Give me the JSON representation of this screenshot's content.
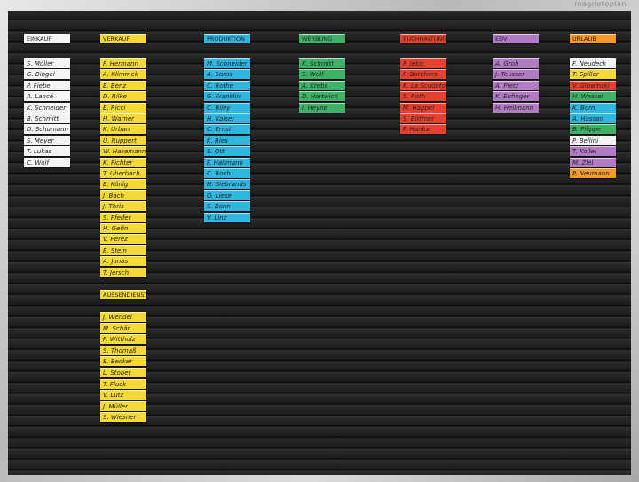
{
  "brand": "magnetoplan",
  "columns": [
    {
      "header": "EINKAUF",
      "color": "#f4f4f4",
      "cards": [
        "S. Möller",
        "G. Bingel",
        "P. Fiebe",
        "A. Lancé",
        "K. Schneider",
        "B. Schmitt",
        "D. Schumann",
        "S. Meyer",
        "T. Lukas",
        "C. Wolf"
      ]
    },
    {
      "header": "VERKAUF",
      "color": "#f5d936",
      "cards": [
        "F. Hermann",
        "A. Klimmek",
        "E. Benz",
        "D. Rilke",
        "E. Ricci",
        "H. Warner",
        "K. Urban",
        "U. Ruppert",
        "W. Hasemann",
        "K. Fichter",
        "T. Uberbach",
        "E. König",
        "J. Bach",
        "J. Thris",
        "S. Pfeifer",
        "H. Gefin",
        "V. Perez",
        "E. Stein",
        "A. Jonas",
        "T. Jersch"
      ]
    },
    {
      "header": "AUSSENDIENST",
      "color": "#f5d936",
      "cards": [
        "J. Wendel",
        "M. Schär",
        "P. Wittholz",
        "S. Thomaß",
        "E. Becker",
        "L. Stober",
        "T. Fluck",
        "V. Lutz",
        "J. Müller",
        "S. Wiesner"
      ]
    },
    {
      "header": "PRODUKTION",
      "color": "#2fb7e0",
      "cards": [
        "M. Schneider",
        "A. Soros",
        "C. Rothe",
        "G. Franklin",
        "C. Riley",
        "H. Kaiser",
        "C. Ernst",
        "K. Ries",
        "S. Ott",
        "F. Hallmann",
        "C. Roch",
        "H. Siebrands",
        "O. Liese",
        "S. Bonn",
        "V. Linz"
      ]
    },
    {
      "header": "WERBUNG",
      "color": "#3fb26a",
      "cards": [
        "K. Schmitt",
        "S. Wolf",
        "A. Krebs",
        "D. Hartwich",
        "I. Heyne"
      ]
    },
    {
      "header": "BUCHHALTUNG",
      "color": "#e8402e",
      "cards": [
        "P. Jekic",
        "F. Borchers",
        "K. La Scudato",
        "S. Roth",
        "M. Happel",
        "S. Böttner",
        "F. Hanka"
      ]
    },
    {
      "header": "EDV",
      "color": "#b27cc4",
      "cards": [
        "A. Groh",
        "J. Teussen",
        "A. Pietz",
        "K. Eufinger",
        "H. Hellmann"
      ]
    },
    {
      "header": "URLAUB",
      "color": "#f39a2a",
      "cards": [
        {
          "name": "F. Neudeck",
          "color": "#f4f4f4"
        },
        {
          "name": "T. Spiller",
          "color": "#f5d936"
        },
        {
          "name": "V. Glowinski",
          "color": "#e8402e"
        },
        {
          "name": "H. Wessel",
          "color": "#3fb26a"
        },
        {
          "name": "K. Born",
          "color": "#2fb7e0"
        },
        {
          "name": "A. Hassan",
          "color": "#2fb7e0"
        },
        {
          "name": "B. Filippe",
          "color": "#3fb26a"
        },
        {
          "name": "P. Bellini",
          "color": "#f4f4f4"
        },
        {
          "name": "T. Kollei",
          "color": "#b27cc4"
        },
        {
          "name": "M. Ziel",
          "color": "#b27cc4"
        },
        {
          "name": "P. Neumann",
          "color": "#f39a2a"
        }
      ]
    }
  ]
}
